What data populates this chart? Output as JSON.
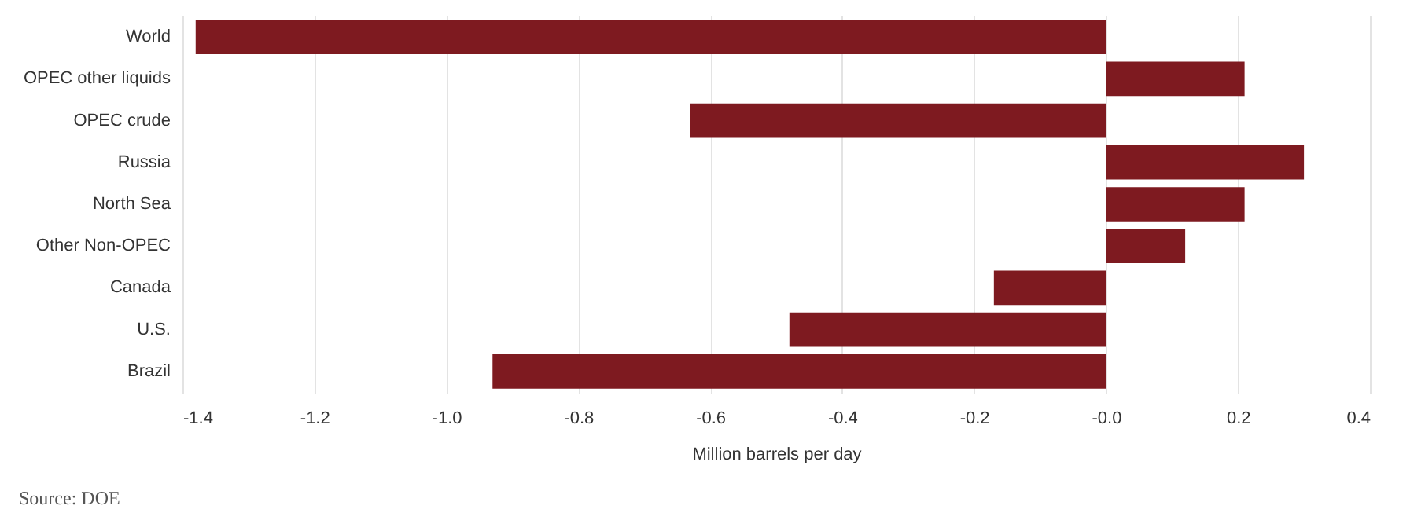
{
  "chart_data": {
    "type": "bar",
    "orientation": "horizontal",
    "categories": [
      "World",
      "OPEC other liquids",
      "OPEC crude",
      "Russia",
      "North Sea",
      "Other Non-OPEC",
      "Canada",
      "U.S.",
      "Brazil"
    ],
    "values": [
      -1.38,
      0.21,
      -0.63,
      0.3,
      0.21,
      0.12,
      -0.17,
      -0.48,
      -0.93
    ],
    "color": "#7e1a20",
    "xlabel": "Million barrels per day",
    "xlim": [
      -1.4,
      0.4
    ],
    "xticks": [
      -1.4,
      -1.2,
      {
        "value": -1,
        "label": "-1.0"
      },
      -0.8,
      -0.6,
      -0.4,
      -0.2,
      {
        "value": 0,
        "label": "-0.0"
      },
      0.2,
      0.4
    ],
    "grid": "x",
    "annotations": [
      "Source: DOE"
    ]
  }
}
